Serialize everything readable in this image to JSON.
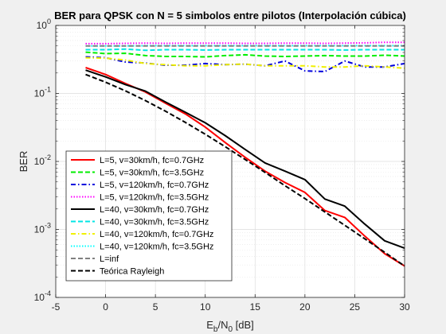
{
  "chart_data": {
    "type": "line",
    "title": "BER para QPSK con N = 5 simbolos entre pilotos (Interpolación cúbica)",
    "xlabel": {
      "main": "E",
      "sub1": "b",
      "mid": "/N",
      "sub2": "0",
      "tail": " [dB]"
    },
    "ylabel": "BER",
    "yscale": "log",
    "xlim": [
      -5,
      30
    ],
    "ylim": [
      0.0001,
      1
    ],
    "grid": true,
    "legend_position": "bottom-left",
    "xticks": [
      -5,
      0,
      5,
      10,
      15,
      20,
      25,
      30
    ],
    "xtick_labels": [
      "-5",
      "0",
      "5",
      "10",
      "15",
      "20",
      "25",
      "30"
    ],
    "yticks": [
      {
        "value": 1,
        "base": "10",
        "exp": "0"
      },
      {
        "value": 0.1,
        "base": "10",
        "exp": "-1"
      },
      {
        "value": 0.01,
        "base": "10",
        "exp": "-2"
      },
      {
        "value": 0.001,
        "base": "10",
        "exp": "-3"
      },
      {
        "value": 0.0001,
        "base": "10",
        "exp": "-4"
      }
    ],
    "x": [
      -2,
      0,
      2,
      4,
      6,
      8,
      10,
      12,
      14,
      16,
      18,
      20,
      22,
      24,
      26,
      28,
      30
    ],
    "series": [
      {
        "name": "L=5, v=30km/h, fc=0.7GHz",
        "color": "#ff0000",
        "dash": "solid",
        "values": [
          0.24,
          0.19,
          0.14,
          0.105,
          0.072,
          0.05,
          0.032,
          0.019,
          0.0115,
          0.0072,
          0.0049,
          0.0035,
          0.0019,
          0.0015,
          0.0008,
          0.00044,
          0.00029
        ]
      },
      {
        "name": "L=5, v=30km/h, fc=3.5GHz",
        "color": "#00ee00",
        "dash": "dashed",
        "values": [
          0.405,
          0.385,
          0.39,
          0.36,
          0.35,
          0.35,
          0.345,
          0.36,
          0.37,
          0.355,
          0.35,
          0.355,
          0.36,
          0.355,
          0.355,
          0.365,
          0.355
        ]
      },
      {
        "name": "L=5, v=120km/h, fc=0.7GHz",
        "color": "#0000dd",
        "dash": "dashdot",
        "values": [
          0.345,
          0.335,
          0.29,
          0.28,
          0.26,
          0.26,
          0.275,
          0.265,
          0.27,
          0.255,
          0.3,
          0.215,
          0.21,
          0.3,
          0.245,
          0.245,
          0.275
        ]
      },
      {
        "name": "L=5, v=120km/h, fc=3.5GHz",
        "color": "#ff00ff",
        "dash": "dotted",
        "values": [
          0.54,
          0.54,
          0.545,
          0.55,
          0.545,
          0.55,
          0.55,
          0.55,
          0.545,
          0.545,
          0.55,
          0.55,
          0.545,
          0.55,
          0.555,
          0.565,
          0.565
        ]
      },
      {
        "name": "L=40, v=30km/h, fc=0.7GHz",
        "color": "#000000",
        "dash": "solid",
        "values": [
          0.22,
          0.175,
          0.135,
          0.108,
          0.075,
          0.053,
          0.037,
          0.024,
          0.015,
          0.0095,
          0.0072,
          0.0054,
          0.0028,
          0.0022,
          0.0012,
          0.00068,
          0.00053
        ]
      },
      {
        "name": "L=40, v=30km/h, fc=3.5GHz",
        "color": "#00e5e5",
        "dash": "dashed",
        "values": [
          0.44,
          0.44,
          0.45,
          0.43,
          0.44,
          0.44,
          0.435,
          0.44,
          0.44,
          0.44,
          0.44,
          0.44,
          0.44,
          0.435,
          0.44,
          0.44,
          0.44
        ]
      },
      {
        "name": "L=40, v=120km/h, fc=0.7GHz",
        "color": "#f0f000",
        "dash": "dashdot",
        "values": [
          0.335,
          0.33,
          0.31,
          0.275,
          0.265,
          0.255,
          0.255,
          0.265,
          0.27,
          0.255,
          0.255,
          0.255,
          0.245,
          0.245,
          0.255,
          0.245,
          0.235
        ]
      },
      {
        "name": "L=40, v=120km/h, fc=3.5GHz",
        "color": "#00ffff",
        "dash": "dotted",
        "values": [
          0.5,
          0.5,
          0.5,
          0.505,
          0.505,
          0.505,
          0.505,
          0.505,
          0.505,
          0.505,
          0.505,
          0.505,
          0.505,
          0.505,
          0.505,
          0.505,
          0.505
        ]
      },
      {
        "name": "L=inf",
        "color": "#808080",
        "dash": "dashed",
        "values": [
          0.5,
          0.5,
          0.5,
          0.5,
          0.5,
          0.5,
          0.5,
          0.5,
          0.5,
          0.5,
          0.5,
          0.5,
          0.5,
          0.5,
          0.5,
          0.5,
          0.5
        ]
      },
      {
        "name": "Teórica Rayleigh",
        "color": "#000000",
        "dash": "dashed",
        "values": [
          0.19,
          0.146,
          0.109,
          0.0784,
          0.0549,
          0.0375,
          0.0251,
          0.0165,
          0.0107,
          0.0069,
          0.0044,
          0.00284,
          0.00181,
          0.00115,
          0.00073,
          0.00046,
          0.00029
        ]
      }
    ]
  }
}
